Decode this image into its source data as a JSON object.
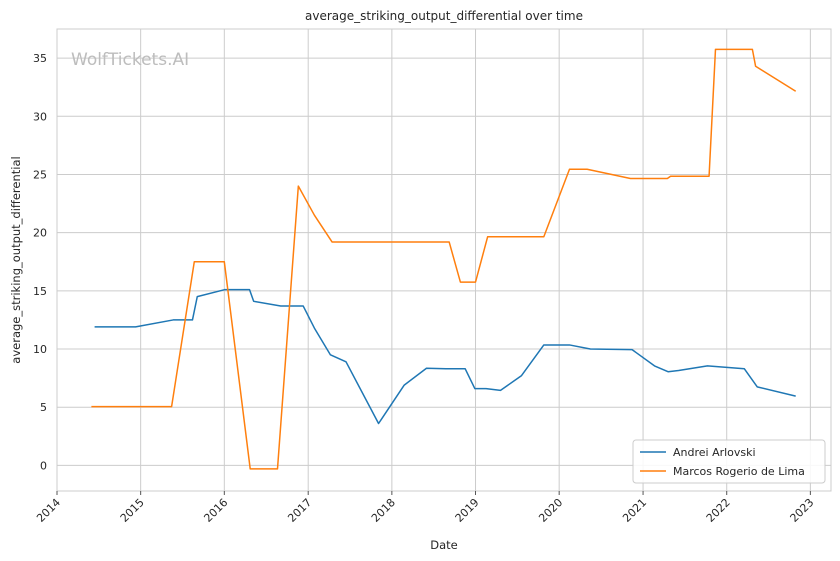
{
  "chart_data": {
    "type": "line",
    "title": "average_striking_output_differential over time",
    "xlabel": "Date",
    "ylabel": "average_striking_output_differential",
    "watermark": "WolfTickets.AI",
    "xlim": [
      "2014-01-01",
      "2023-04-01"
    ],
    "ylim": [
      -2.2,
      37.5
    ],
    "x_ticks": [
      "2014",
      "2015",
      "2016",
      "2017",
      "2018",
      "2019",
      "2020",
      "2021",
      "2022",
      "2023"
    ],
    "y_ticks": [
      0,
      5,
      10,
      15,
      20,
      25,
      30,
      35
    ],
    "grid": true,
    "legend_position": "lower-right",
    "series": [
      {
        "name": "Andrei Arlovski",
        "color": "#1f77b4",
        "points": [
          [
            "2014-06-14",
            11.9
          ],
          [
            "2014-12-10",
            11.9
          ],
          [
            "2015-05-23",
            12.5
          ],
          [
            "2015-08-15",
            12.5
          ],
          [
            "2015-09-05",
            14.5
          ],
          [
            "2016-01-02",
            15.1
          ],
          [
            "2016-04-20",
            15.1
          ],
          [
            "2016-05-08",
            14.1
          ],
          [
            "2016-09-03",
            13.7
          ],
          [
            "2016-12-10",
            13.7
          ],
          [
            "2017-01-28",
            11.8
          ],
          [
            "2017-04-08",
            9.5
          ],
          [
            "2017-06-15",
            8.9
          ],
          [
            "2017-11-04",
            3.6
          ],
          [
            "2018-02-24",
            6.9
          ],
          [
            "2018-06-01",
            8.35
          ],
          [
            "2018-08-25",
            8.3
          ],
          [
            "2018-11-17",
            8.3
          ],
          [
            "2018-12-29",
            6.6
          ],
          [
            "2019-02-16",
            6.6
          ],
          [
            "2019-04-20",
            6.45
          ],
          [
            "2019-07-20",
            7.7
          ],
          [
            "2019-10-26",
            10.35
          ],
          [
            "2020-02-15",
            10.35
          ],
          [
            "2020-05-16",
            10.0
          ],
          [
            "2020-11-14",
            9.95
          ],
          [
            "2021-02-20",
            8.55
          ],
          [
            "2021-04-20",
            8.05
          ],
          [
            "2021-06-05",
            8.15
          ],
          [
            "2021-10-09",
            8.55
          ],
          [
            "2022-01-15",
            8.4
          ],
          [
            "2022-03-19",
            8.3
          ],
          [
            "2022-05-14",
            6.75
          ],
          [
            "2022-10-29",
            5.95
          ]
        ]
      },
      {
        "name": "Marcos Rogerio de Lima",
        "color": "#ff7f0e",
        "points": [
          [
            "2014-05-31",
            5.05
          ],
          [
            "2015-05-16",
            5.05
          ],
          [
            "2015-08-23",
            17.5
          ],
          [
            "2016-01-01",
            17.5
          ],
          [
            "2016-04-23",
            -0.3
          ],
          [
            "2016-08-20",
            -0.3
          ],
          [
            "2016-11-19",
            24.0
          ],
          [
            "2017-01-28",
            21.5
          ],
          [
            "2017-04-15",
            19.2
          ],
          [
            "2018-09-08",
            19.2
          ],
          [
            "2018-10-27",
            15.75
          ],
          [
            "2019-01-01",
            15.75
          ],
          [
            "2019-02-23",
            19.65
          ],
          [
            "2019-10-26",
            19.65
          ],
          [
            "2020-02-15",
            25.45
          ],
          [
            "2020-05-02",
            25.45
          ],
          [
            "2020-11-07",
            24.65
          ],
          [
            "2021-04-17",
            24.65
          ],
          [
            "2021-05-01",
            24.85
          ],
          [
            "2021-10-16",
            24.85
          ],
          [
            "2021-11-13",
            35.75
          ],
          [
            "2022-04-23",
            35.75
          ],
          [
            "2022-05-07",
            34.3
          ],
          [
            "2022-10-29",
            32.15
          ]
        ]
      }
    ]
  }
}
